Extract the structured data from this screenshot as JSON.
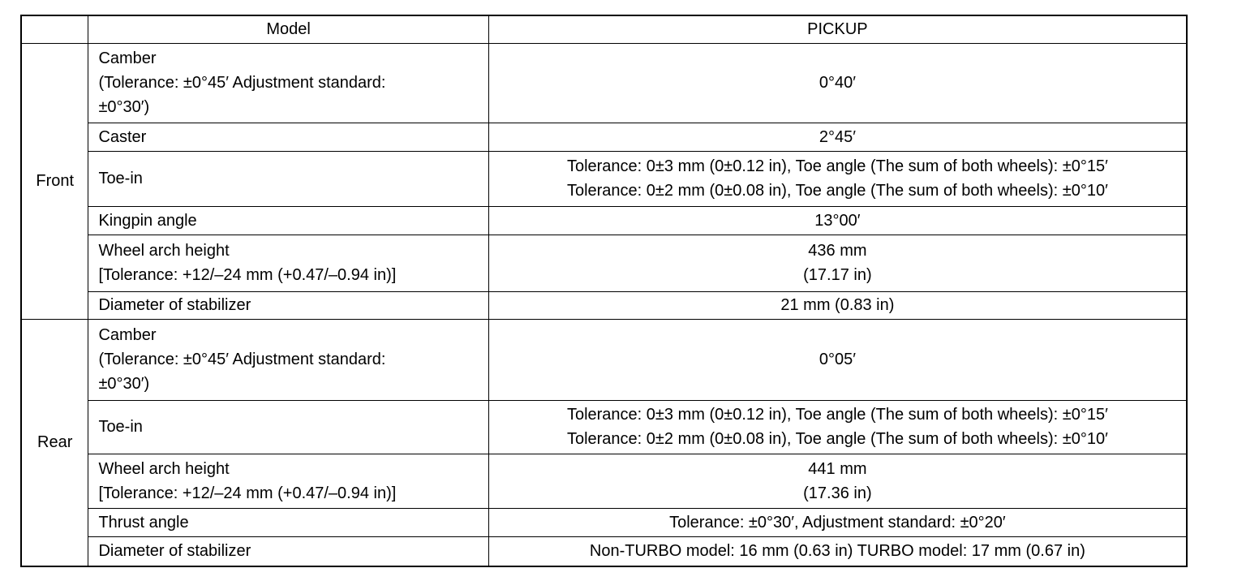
{
  "header": {
    "blank": "",
    "model_label": "Model",
    "model_value": "PICKUP"
  },
  "front": {
    "label": "Front",
    "rows": [
      {
        "name": [
          "Camber",
          "(Tolerance: ±0°45′ Adjustment standard:",
          "±0°30′)"
        ],
        "value": [
          "0°40′"
        ]
      },
      {
        "name": [
          "Caster"
        ],
        "value": [
          "2°45′"
        ]
      },
      {
        "name": [
          "Toe-in"
        ],
        "value": [
          "Tolerance: 0±3 mm (0±0.12 in), Toe angle (The sum of both wheels): ±0°15′",
          "Tolerance: 0±2 mm (0±0.08 in), Toe angle (The sum of both wheels): ±0°10′"
        ]
      },
      {
        "name": [
          "Kingpin angle"
        ],
        "value": [
          "13°00′"
        ]
      },
      {
        "name": [
          "Wheel arch height",
          "[Tolerance: +12/–24 mm (+0.47/–0.94 in)]"
        ],
        "value": [
          "436 mm",
          "(17.17 in)"
        ]
      },
      {
        "name": [
          "Diameter of stabilizer"
        ],
        "value": [
          "21 mm (0.83 in)"
        ]
      }
    ]
  },
  "rear": {
    "label": "Rear",
    "rows": [
      {
        "name": [
          "Camber",
          "(Tolerance: ±0°45′ Adjustment standard:",
          "±0°30′)"
        ],
        "value": [
          "0°05′"
        ]
      },
      {
        "name": [
          "Toe-in"
        ],
        "value": [
          "Tolerance: 0±3 mm (0±0.12 in), Toe angle (The sum of both wheels): ±0°15′",
          "Tolerance: 0±2 mm (0±0.08 in), Toe angle (The sum of both wheels): ±0°10′"
        ]
      },
      {
        "name": [
          "Wheel arch height",
          "[Tolerance: +12/–24 mm (+0.47/–0.94 in)]"
        ],
        "value": [
          "441 mm",
          "(17.36 in)"
        ]
      },
      {
        "name": [
          "Thrust angle"
        ],
        "value": [
          "Tolerance: ±0°30′, Adjustment standard: ±0°20′"
        ]
      },
      {
        "name": [
          "Diameter of stabilizer"
        ],
        "value": [
          "Non-TURBO model: 16 mm (0.63 in) TURBO model: 17 mm (0.67 in)"
        ]
      }
    ]
  }
}
